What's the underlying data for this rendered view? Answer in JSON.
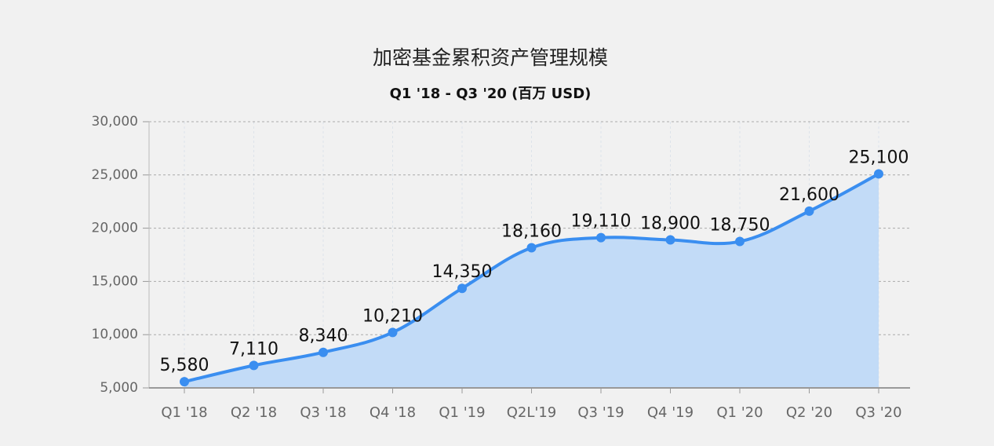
{
  "chart_data": {
    "type": "line",
    "title": "加密基金累积资产管理规模",
    "subtitle": "Q1 '18 - Q3 '20 (百万 USD)",
    "categories": [
      "Q1 '18",
      "Q2 '18",
      "Q3 '18",
      "Q4 '18",
      "Q1 '19",
      "Q2L'19",
      "Q3 '19",
      "Q4 '19",
      "Q1 '20",
      "Q2 '20",
      "Q3 '20"
    ],
    "values": [
      5580,
      7110,
      8340,
      10210,
      14350,
      18160,
      19110,
      18900,
      18750,
      21600,
      25100
    ],
    "value_labels": [
      "5,580",
      "7,110",
      "8,340",
      "10,210",
      "14,350",
      "18,160",
      "19,110",
      "18,900",
      "18,750",
      "21,600",
      "25,100"
    ],
    "color": "#3a8ef0",
    "area_color": "#c2dbf7",
    "ylim": [
      5000,
      30000
    ],
    "yticks": [
      {
        "value": 5000,
        "label": "5,000"
      },
      {
        "value": 10000,
        "label": "10,000"
      },
      {
        "value": 15000,
        "label": "15,000"
      },
      {
        "value": 20000,
        "label": "20,000"
      },
      {
        "value": 25000,
        "label": "25,000"
      },
      {
        "value": 30000,
        "label": "30,000"
      }
    ],
    "grid": true
  }
}
